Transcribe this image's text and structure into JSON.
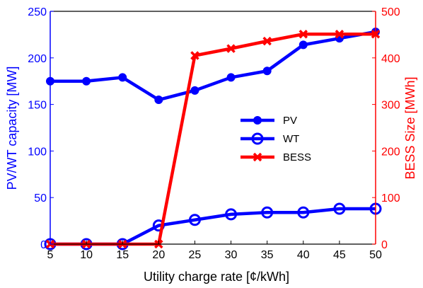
{
  "colors": {
    "left_axis": "#0000FF",
    "right_axis": "#FF0000",
    "bottom_axis": "#000000"
  },
  "chart_data": {
    "type": "line",
    "x": [
      5,
      10,
      15,
      20,
      25,
      30,
      35,
      40,
      45,
      50
    ],
    "xlabel": "Utility charge rate [¢/kWh]",
    "xlim": [
      5,
      50
    ],
    "xticks": [
      "5",
      "10",
      "15",
      "20",
      "25",
      "30",
      "35",
      "40",
      "45",
      "50"
    ],
    "ylabel_left": "PV/WT capacity [MW]",
    "ylim_left": [
      0,
      250
    ],
    "yticks_left": [
      "0",
      "50",
      "100",
      "150",
      "200",
      "250"
    ],
    "ylabel_right": "BESS Size [MWh]",
    "ylim_right": [
      0,
      500
    ],
    "yticks_right": [
      "0",
      "100",
      "200",
      "300",
      "400",
      "500"
    ],
    "grid": false,
    "legend_position": "center-right",
    "series": [
      {
        "name": "PV",
        "axis": "left",
        "color": "#0000FF",
        "marker": "filled-circle",
        "values": [
          175,
          175,
          179,
          155,
          165,
          179,
          186,
          214,
          221,
          228
        ]
      },
      {
        "name": "WT",
        "axis": "left",
        "color": "#0000FF",
        "marker": "open-circle",
        "values": [
          0,
          0,
          0,
          20,
          26,
          32,
          34,
          34,
          38,
          38
        ]
      },
      {
        "name": "BESS",
        "axis": "right",
        "color": "#FF0000",
        "marker": "x",
        "values": [
          0,
          0,
          0,
          0,
          405,
          420,
          436,
          451,
          451,
          451
        ]
      }
    ]
  }
}
